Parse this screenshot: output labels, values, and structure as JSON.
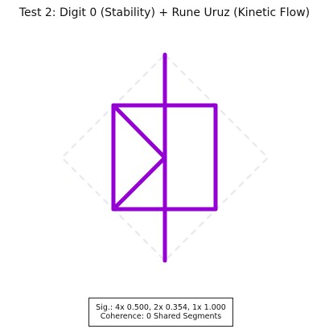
{
  "title": "Test 2: Digit 0 (Stability) + Rune Uruz (Kinetic Flow)",
  "colors": {
    "glyph_stroke": "#9400D3",
    "guide_stroke": "#e6e6ee",
    "text": "#111111",
    "box_border": "#222222"
  },
  "caption": {
    "line1": "Sig.: 4x 0.500, 2x 0.354, 1x 1.000",
    "line2": "Coherence: 0 Shared Segments"
  }
}
